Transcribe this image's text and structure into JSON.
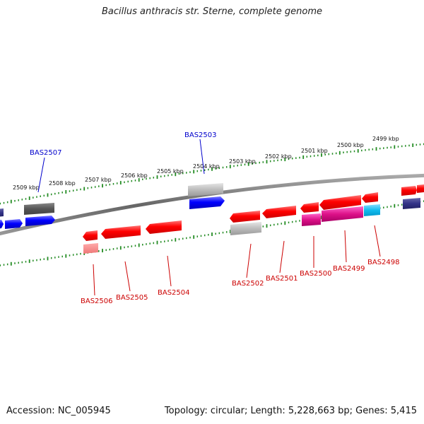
{
  "title": "Bacillus anthracis str. Sterne, complete genome",
  "footer": {
    "accession": "Accession: NC_005945",
    "info": "Topology: circular; Length: 5,228,663 bp; Genes: 5,415"
  },
  "kbp_labels": [
    "2509 kbp",
    "2508 kbp",
    "2507 kbp",
    "2506 kbp",
    "2505 kbp",
    "2504 kbp",
    "2503 kbp",
    "2502 kbp",
    "2501 kbp",
    "2500 kbp",
    "2499 kbp"
  ],
  "genes": [
    {
      "name": "BAS2507",
      "color": "#0000cc"
    },
    {
      "name": "BAS2503",
      "color": "#0000cc"
    },
    {
      "name": "BAS2506",
      "color": "#cc0000"
    },
    {
      "name": "BAS2505",
      "color": "#cc0000"
    },
    {
      "name": "BAS2504",
      "color": "#cc0000"
    },
    {
      "name": "BAS2502",
      "color": "#cc0000"
    },
    {
      "name": "BAS2501",
      "color": "#cc0000"
    },
    {
      "name": "BAS2500",
      "color": "#cc0000"
    },
    {
      "name": "BAS2499",
      "color": "#cc0000"
    },
    {
      "name": "BAS2498",
      "color": "#cc0000"
    }
  ],
  "colors": {
    "backbone": "#777777",
    "ticks": "#228b22",
    "forward": "#0000ff",
    "reverse": "#ff0000",
    "gray": "#bbbbbb",
    "dark_gray": "#555555",
    "magenta": "#dd1188",
    "cyan": "#11bbee",
    "navy": "#333388"
  }
}
